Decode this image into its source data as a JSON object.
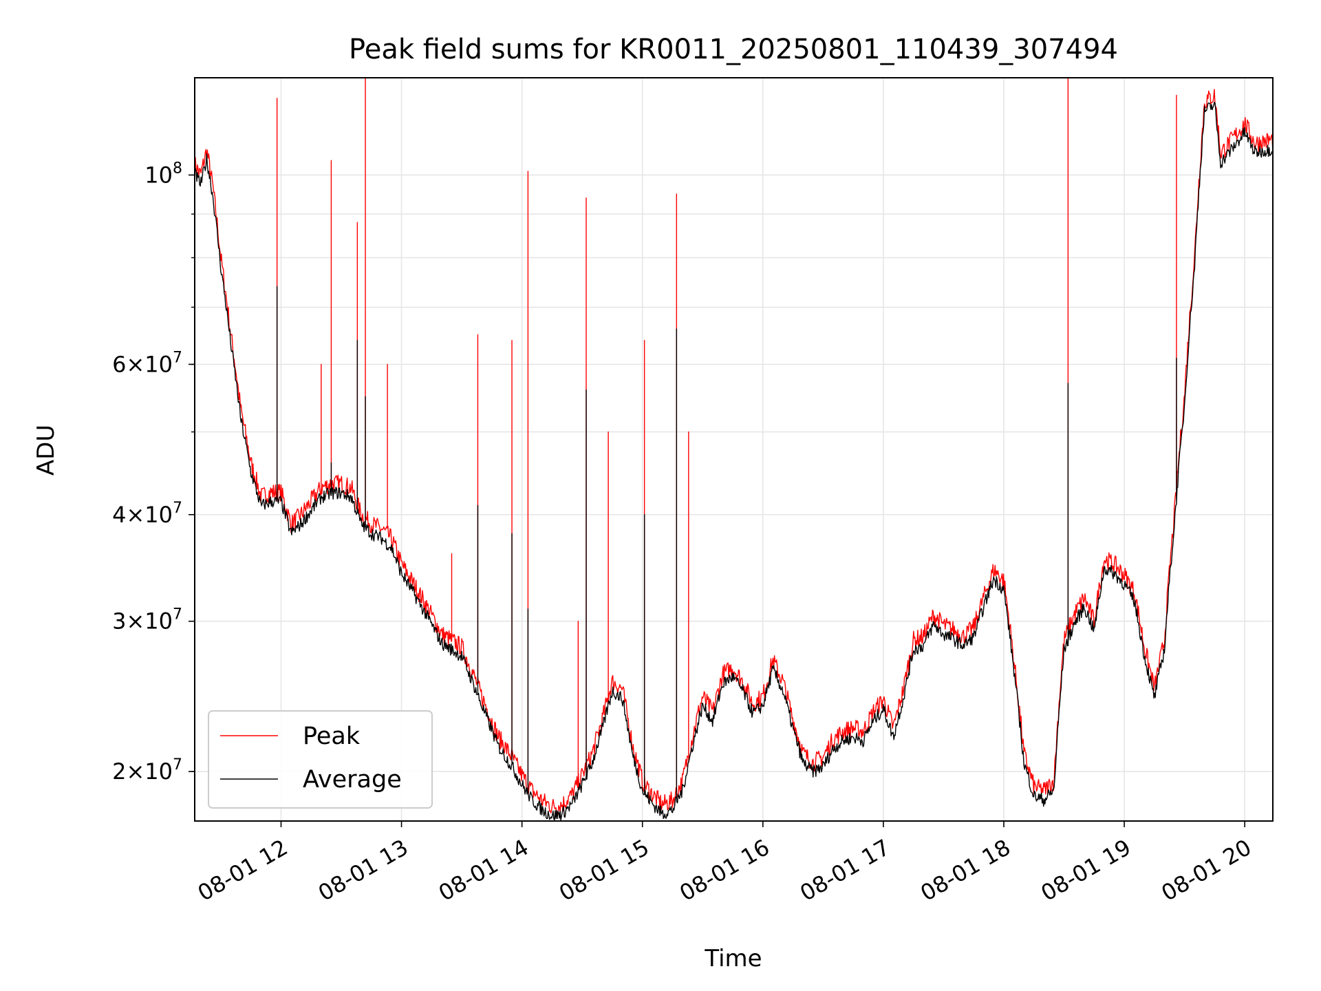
{
  "chart_data": {
    "type": "line",
    "title": "Peak field sums for KR0011_20250801_110439_307494",
    "xlabel": "Time",
    "ylabel": "ADU",
    "yscale": "log",
    "ylim": [
      17500000,
      130000000
    ],
    "xlim": [
      "08-01 11:17",
      "08-01 20:14"
    ],
    "grid": true,
    "legend_position": "lower-left",
    "x_tick_labels": [
      "08-01 12",
      "08-01 13",
      "08-01 14",
      "08-01 15",
      "08-01 16",
      "08-01 17",
      "08-01 18",
      "08-01 19",
      "08-01 20"
    ],
    "y_tick_labels": [
      {
        "value": 20000000,
        "mantissa": "2",
        "exponent": "7"
      },
      {
        "value": 30000000,
        "mantissa": "3",
        "exponent": "7"
      },
      {
        "value": 40000000,
        "mantissa": "4",
        "exponent": "7"
      },
      {
        "value": 60000000,
        "mantissa": "6",
        "exponent": "7"
      },
      {
        "value": 100000000,
        "mantissa": "",
        "exponent": "8"
      }
    ],
    "series": [
      {
        "name": "Peak",
        "color": "#ff0000",
        "baseline": [
          [
            "08-01 11:17",
            103000000
          ],
          [
            "08-01 11:20",
            100000000
          ],
          [
            "08-01 11:23",
            107000000
          ],
          [
            "08-01 11:26",
            97000000
          ],
          [
            "08-01 11:30",
            80000000
          ],
          [
            "08-01 11:35",
            65000000
          ],
          [
            "08-01 11:40",
            53000000
          ],
          [
            "08-01 11:45",
            46000000
          ],
          [
            "08-01 11:50",
            42000000
          ],
          [
            "08-01 11:55",
            42500000
          ],
          [
            "08-01 12:00",
            42500000
          ],
          [
            "08-01 12:05",
            39000000
          ],
          [
            "08-01 12:10",
            40000000
          ],
          [
            "08-01 12:15",
            41500000
          ],
          [
            "08-01 12:20",
            43000000
          ],
          [
            "08-01 12:25",
            43500000
          ],
          [
            "08-01 12:30",
            43500000
          ],
          [
            "08-01 12:35",
            43000000
          ],
          [
            "08-01 12:40",
            40000000
          ],
          [
            "08-01 12:45",
            39000000
          ],
          [
            "08-01 12:50",
            38500000
          ],
          [
            "08-01 12:55",
            37500000
          ],
          [
            "08-01 13:00",
            35000000
          ],
          [
            "08-01 13:10",
            32000000
          ],
          [
            "08-01 13:20",
            29000000
          ],
          [
            "08-01 13:30",
            28000000
          ],
          [
            "08-01 13:40",
            24500000
          ],
          [
            "08-01 13:48",
            22000000
          ],
          [
            "08-01 13:55",
            20800000
          ],
          [
            "08-01 14:00",
            19800000
          ],
          [
            "08-01 14:05",
            19000000
          ],
          [
            "08-01 14:10",
            18500000
          ],
          [
            "08-01 14:15",
            18200000
          ],
          [
            "08-01 14:20",
            18300000
          ],
          [
            "08-01 14:25",
            18800000
          ],
          [
            "08-01 14:30",
            19800000
          ],
          [
            "08-01 14:35",
            21000000
          ],
          [
            "08-01 14:40",
            23000000
          ],
          [
            "08-01 14:45",
            25500000
          ],
          [
            "08-01 14:50",
            25000000
          ],
          [
            "08-01 14:55",
            21500000
          ],
          [
            "08-01 15:00",
            19500000
          ],
          [
            "08-01 15:05",
            18800000
          ],
          [
            "08-01 15:10",
            18300000
          ],
          [
            "08-01 15:15",
            18500000
          ],
          [
            "08-01 15:20",
            19500000
          ],
          [
            "08-01 15:25",
            22000000
          ],
          [
            "08-01 15:30",
            24500000
          ],
          [
            "08-01 15:35",
            23500000
          ],
          [
            "08-01 15:40",
            26000000
          ],
          [
            "08-01 15:45",
            26500000
          ],
          [
            "08-01 15:50",
            25500000
          ],
          [
            "08-01 15:55",
            24000000
          ],
          [
            "08-01 16:00",
            24500000
          ],
          [
            "08-01 16:05",
            27000000
          ],
          [
            "08-01 16:10",
            25500000
          ],
          [
            "08-01 16:15",
            23000000
          ],
          [
            "08-01 16:20",
            21000000
          ],
          [
            "08-01 16:25",
            20500000
          ],
          [
            "08-01 16:30",
            20800000
          ],
          [
            "08-01 16:35",
            21800000
          ],
          [
            "08-01 16:40",
            22300000
          ],
          [
            "08-01 16:45",
            22500000
          ],
          [
            "08-01 16:50",
            22300000
          ],
          [
            "08-01 16:55",
            23500000
          ],
          [
            "08-01 17:00",
            24300000
          ],
          [
            "08-01 17:05",
            22500000
          ],
          [
            "08-01 17:10",
            25000000
          ],
          [
            "08-01 17:15",
            28500000
          ],
          [
            "08-01 17:20",
            28800000
          ],
          [
            "08-01 17:25",
            30500000
          ],
          [
            "08-01 17:30",
            29700000
          ],
          [
            "08-01 17:35",
            29300000
          ],
          [
            "08-01 17:40",
            28800000
          ],
          [
            "08-01 17:45",
            29500000
          ],
          [
            "08-01 17:50",
            32000000
          ],
          [
            "08-01 17:55",
            34500000
          ],
          [
            "08-01 18:00",
            33500000
          ],
          [
            "08-01 18:05",
            27000000
          ],
          [
            "08-01 18:10",
            21000000
          ],
          [
            "08-01 18:15",
            19200000
          ],
          [
            "08-01 18:20",
            19000000
          ],
          [
            "08-01 18:25",
            19500000
          ],
          [
            "08-01 18:30",
            28500000
          ],
          [
            "08-01 18:35",
            30500000
          ],
          [
            "08-01 18:40",
            32000000
          ],
          [
            "08-01 18:45",
            30000000
          ],
          [
            "08-01 18:50",
            35500000
          ],
          [
            "08-01 18:55",
            35000000
          ],
          [
            "08-01 19:00",
            34000000
          ],
          [
            "08-01 19:05",
            32500000
          ],
          [
            "08-01 19:10",
            28000000
          ],
          [
            "08-01 19:15",
            25000000
          ],
          [
            "08-01 19:20",
            28500000
          ],
          [
            "08-01 19:25",
            40000000
          ],
          [
            "08-01 19:30",
            55000000
          ],
          [
            "08-01 19:35",
            80000000
          ],
          [
            "08-01 19:40",
            122000000
          ],
          [
            "08-01 19:45",
            124000000
          ],
          [
            "08-01 19:48",
            106000000
          ],
          [
            "08-01 19:55",
            111000000
          ],
          [
            "08-01 20:00",
            115000000
          ],
          [
            "08-01 20:05",
            109000000
          ],
          [
            "08-01 20:14",
            110000000
          ]
        ],
        "spikes": [
          [
            "08-01 11:58",
            123000000
          ],
          [
            "08-01 12:20",
            60000000
          ],
          [
            "08-01 12:25",
            104000000
          ],
          [
            "08-01 12:38",
            88000000
          ],
          [
            "08-01 12:42",
            138000000
          ],
          [
            "08-01 12:53",
            60000000
          ],
          [
            "08-01 13:25",
            36000000
          ],
          [
            "08-01 13:38",
            65000000
          ],
          [
            "08-01 13:55",
            64000000
          ],
          [
            "08-01 14:03",
            101000000
          ],
          [
            "08-01 14:28",
            30000000
          ],
          [
            "08-01 14:32",
            94000000
          ],
          [
            "08-01 14:43",
            50000000
          ],
          [
            "08-01 15:01",
            64000000
          ],
          [
            "08-01 15:17",
            95000000
          ],
          [
            "08-01 15:23",
            50000000
          ],
          [
            "08-01 18:32",
            130000000
          ],
          [
            "08-01 19:26",
            124000000
          ]
        ]
      },
      {
        "name": "Average",
        "color": "#000000",
        "spikes": [
          [
            "08-01 11:58",
            74000000
          ],
          [
            "08-01 12:25",
            46000000
          ],
          [
            "08-01 12:38",
            64000000
          ],
          [
            "08-01 12:42",
            55000000
          ],
          [
            "08-01 13:38",
            41000000
          ],
          [
            "08-01 13:55",
            38000000
          ],
          [
            "08-01 14:03",
            31000000
          ],
          [
            "08-01 14:32",
            56000000
          ],
          [
            "08-01 15:01",
            40000000
          ],
          [
            "08-01 15:17",
            66000000
          ],
          [
            "08-01 18:32",
            57000000
          ],
          [
            "08-01 19:26",
            61000000
          ]
        ]
      }
    ]
  }
}
